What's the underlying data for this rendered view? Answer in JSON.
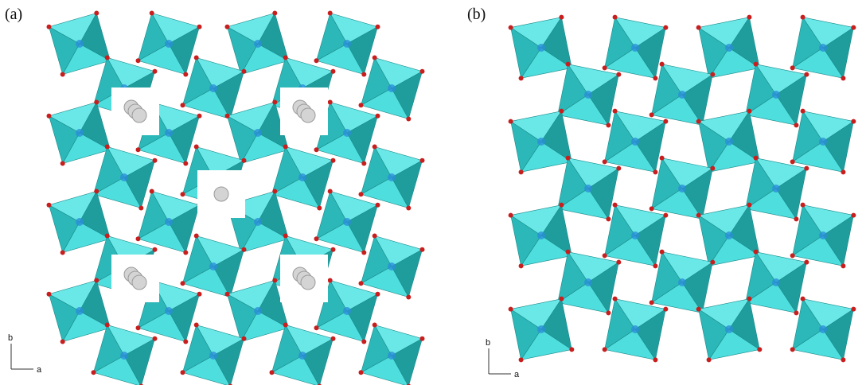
{
  "panels": [
    {
      "label": "(a)",
      "axes": {
        "vertical": "b",
        "horizontal": "a"
      }
    },
    {
      "label": "(b)",
      "axes": {
        "vertical": "b",
        "horizontal": "a"
      }
    }
  ]
}
